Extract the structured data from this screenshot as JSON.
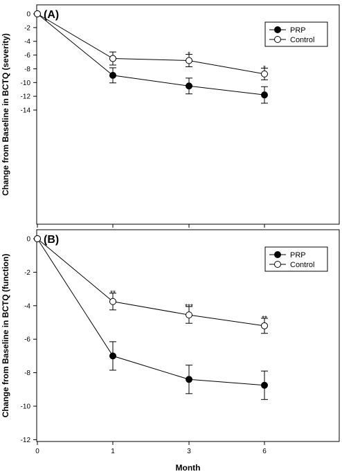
{
  "chart_data": [
    {
      "type": "line",
      "panel_label": "(A)",
      "ylabel": "Change from Baseline in BCTQ (severity)",
      "xlabel": "",
      "x": [
        0,
        1,
        3,
        6
      ],
      "x_tick_labels": [
        "0",
        "1",
        "3",
        "6"
      ],
      "ylim": [
        -15,
        0
      ],
      "y_ticks": [
        0,
        -2,
        -4,
        -6,
        -8,
        -10,
        -12,
        -14
      ],
      "y_tick_labels": [
        "0",
        "-2",
        "-4",
        "-6",
        "-8",
        "-10",
        "-12",
        "-14"
      ],
      "legend_position": "top-right",
      "series": [
        {
          "name": "PRP",
          "marker": "filled",
          "values": [
            0,
            -8.95,
            -10.5,
            -11.8
          ],
          "errors": [
            0,
            1.1,
            1.15,
            1.2
          ]
        },
        {
          "name": "Control",
          "marker": "open",
          "values": [
            0,
            -6.5,
            -6.8,
            -8.75
          ],
          "errors": [
            0,
            0.95,
            0.9,
            0.85
          ]
        }
      ],
      "annotations": [
        {
          "x": 3,
          "y": -5.9,
          "text": "*"
        },
        {
          "x": 6,
          "y": -7.9,
          "text": "*"
        }
      ]
    },
    {
      "type": "line",
      "panel_label": "(B)",
      "ylabel": "Change from Baseline in BCTQ (function)",
      "xlabel": "Month",
      "x": [
        0,
        1,
        3,
        6
      ],
      "x_tick_labels": [
        "0",
        "1",
        "3",
        "6"
      ],
      "ylim": [
        -12,
        0
      ],
      "y_ticks": [
        0,
        -2,
        -4,
        -6,
        -8,
        -10,
        -12
      ],
      "y_tick_labels": [
        "0",
        "-2",
        "-4",
        "-6",
        "-8",
        "-10",
        "-12"
      ],
      "legend_position": "top-right",
      "series": [
        {
          "name": "PRP",
          "marker": "filled",
          "values": [
            0,
            -7.0,
            -8.4,
            -8.75
          ],
          "errors": [
            0,
            0.85,
            0.85,
            0.85
          ]
        },
        {
          "name": "Control",
          "marker": "open",
          "values": [
            0,
            -3.75,
            -4.55,
            -5.2
          ],
          "errors": [
            0,
            0.5,
            0.5,
            0.45
          ]
        }
      ],
      "annotations": [
        {
          "x": 1,
          "y": -3.25,
          "text": "**"
        },
        {
          "x": 3,
          "y": -4.05,
          "text": "***"
        },
        {
          "x": 6,
          "y": -4.75,
          "text": "**"
        }
      ]
    }
  ]
}
